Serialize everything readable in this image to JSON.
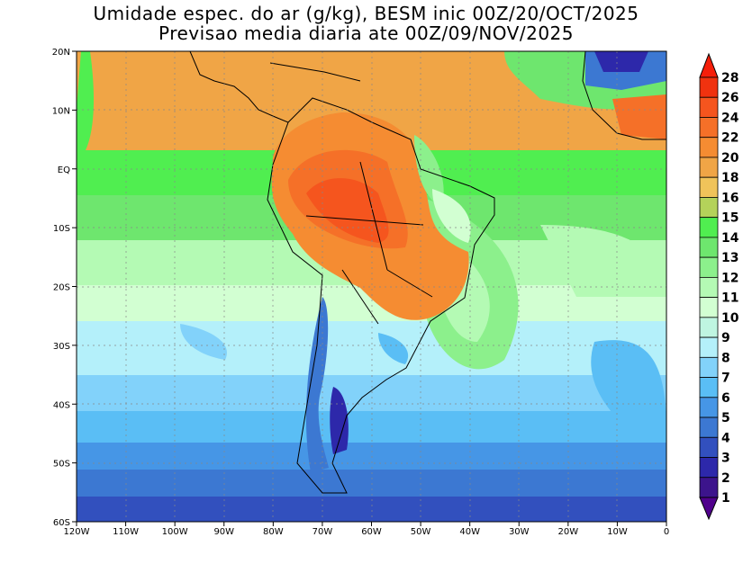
{
  "title": {
    "line1": "Umidade espec. do ar (g/kg), BESM inic 00Z/20/OCT/2025",
    "line2": "Previsao media diaria ate 00Z/09/NOV/2025"
  },
  "axes": {
    "lat_labels": [
      "20N",
      "10N",
      "EQ",
      "10S",
      "20S",
      "30S",
      "40S",
      "50S",
      "60S"
    ],
    "lon_labels": [
      "120W",
      "110W",
      "100W",
      "90W",
      "80W",
      "70W",
      "60W",
      "50W",
      "40W",
      "30W",
      "20W",
      "10W",
      "0"
    ]
  },
  "colorbar": {
    "labels": [
      "28",
      "26",
      "24",
      "22",
      "20",
      "18",
      "16",
      "15",
      "14",
      "13",
      "12",
      "11",
      "10",
      "9",
      "8",
      "7",
      "6",
      "5",
      "4",
      "3",
      "2",
      "1"
    ],
    "colors": [
      "#f51e0a",
      "#f0320f",
      "#f5551e",
      "#f57028",
      "#f58c32",
      "#f0a546",
      "#f0c35a",
      "#b4d25a",
      "#50ee50",
      "#6ee66e",
      "#8cf08c",
      "#b4fab4",
      "#d2ffd2",
      "#bff5e1",
      "#b4f0fa",
      "#82d2fa",
      "#5abef5",
      "#4696e6",
      "#3c78d2",
      "#3250be",
      "#2d28aa",
      "#3c148c",
      "#50008c"
    ]
  }
}
